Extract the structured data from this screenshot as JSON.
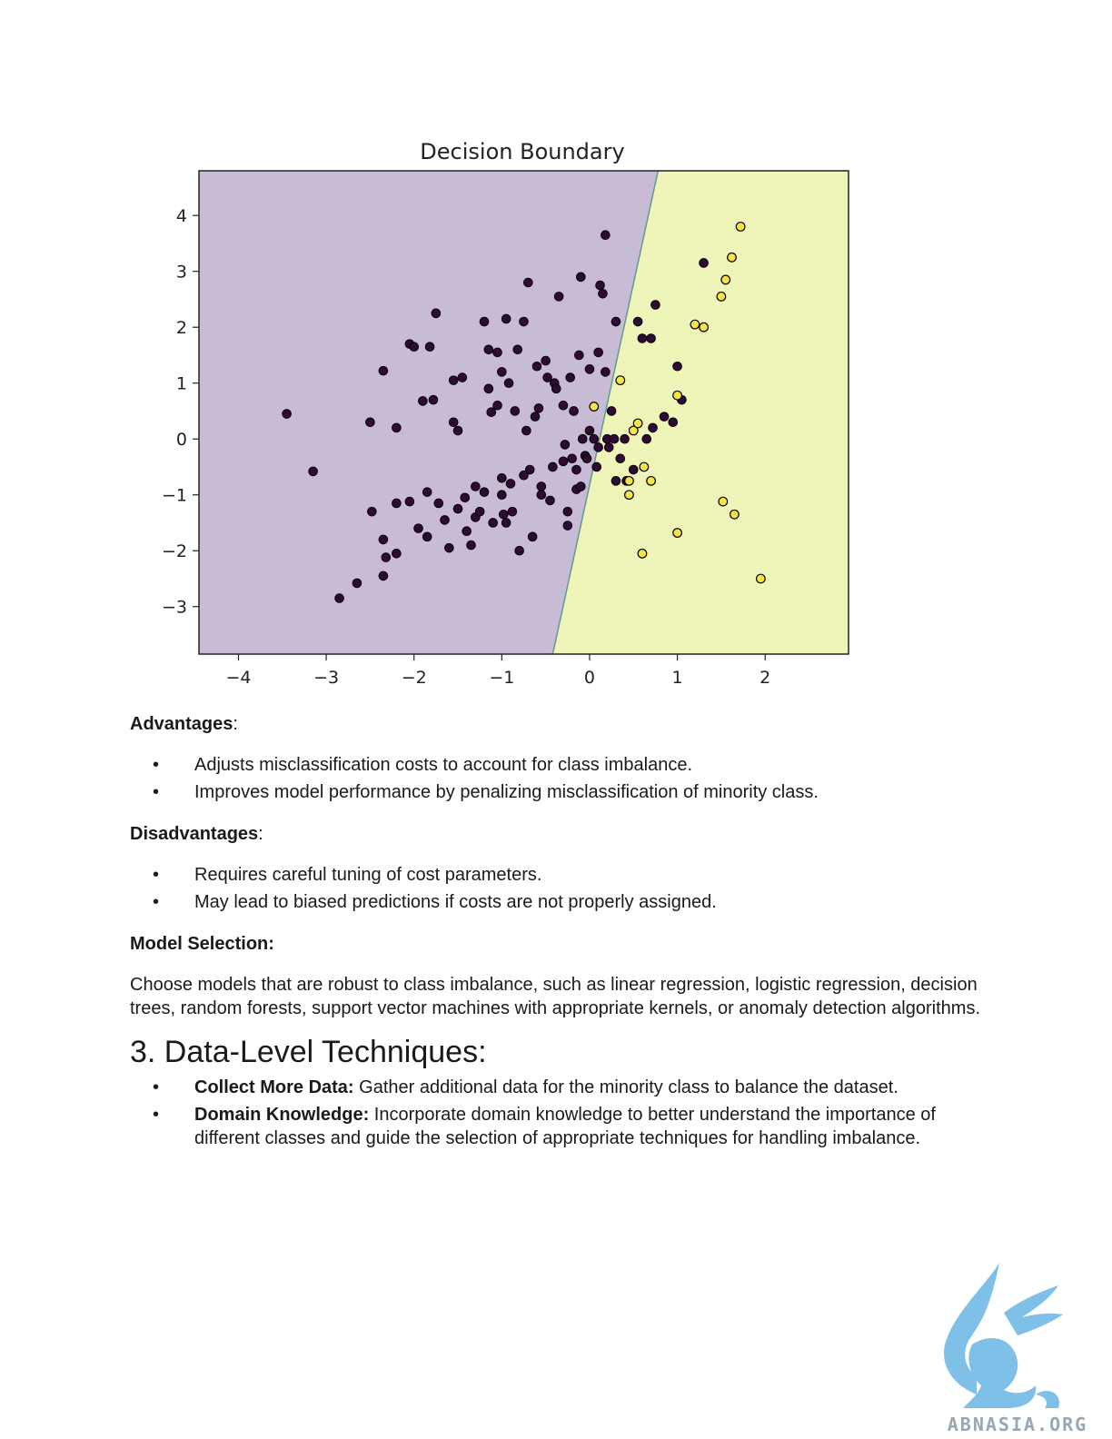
{
  "chart_data": {
    "type": "scatter",
    "title": "Decision Boundary",
    "xlim": [
      -4.45,
      2.95
    ],
    "ylim": [
      -3.85,
      4.8
    ],
    "xticks": [
      -4,
      -3,
      -2,
      -1,
      0,
      1,
      2
    ],
    "yticks": [
      -3,
      -2,
      -1,
      0,
      1,
      2,
      3,
      4
    ],
    "boundary_line": [
      [
        -0.42,
        -3.85
      ],
      [
        0.78,
        4.8
      ]
    ],
    "region_colors": {
      "class_0": "#c8bbd6",
      "class_1": "#eff5b8"
    },
    "point_colors": {
      "class_0": "#2e0a34",
      "class_1": "#f5e443"
    },
    "class_0_points": [
      [
        -3.45,
        0.45
      ],
      [
        -3.15,
        -0.58
      ],
      [
        -2.85,
        -2.85
      ],
      [
        -2.65,
        -2.58
      ],
      [
        -2.5,
        0.3
      ],
      [
        -2.48,
        -1.3
      ],
      [
        -2.35,
        1.22
      ],
      [
        -2.35,
        -1.8
      ],
      [
        -2.32,
        -2.12
      ],
      [
        -2.35,
        -2.45
      ],
      [
        -2.2,
        -2.05
      ],
      [
        -2.2,
        -1.15
      ],
      [
        -2.2,
        0.2
      ],
      [
        -2.05,
        1.7
      ],
      [
        -2.0,
        1.65
      ],
      [
        -2.05,
        -1.12
      ],
      [
        -1.95,
        -1.6
      ],
      [
        -1.9,
        0.68
      ],
      [
        -1.85,
        -0.95
      ],
      [
        -1.85,
        -1.75
      ],
      [
        -1.82,
        1.65
      ],
      [
        -1.78,
        0.7
      ],
      [
        -1.75,
        2.25
      ],
      [
        -1.72,
        -1.15
      ],
      [
        -1.65,
        -1.45
      ],
      [
        -1.6,
        -1.95
      ],
      [
        -1.55,
        1.05
      ],
      [
        -1.55,
        0.3
      ],
      [
        -1.5,
        0.15
      ],
      [
        -1.5,
        -1.25
      ],
      [
        -1.45,
        1.1
      ],
      [
        -1.42,
        -1.05
      ],
      [
        -1.4,
        -1.65
      ],
      [
        -1.35,
        -1.9
      ],
      [
        -1.3,
        -0.85
      ],
      [
        -1.3,
        -1.4
      ],
      [
        -1.25,
        -1.3
      ],
      [
        -1.2,
        2.1
      ],
      [
        -1.2,
        -0.95
      ],
      [
        -1.15,
        0.9
      ],
      [
        -1.15,
        1.6
      ],
      [
        -1.12,
        0.48
      ],
      [
        -1.1,
        -1.5
      ],
      [
        -1.05,
        0.6
      ],
      [
        -1.05,
        1.55
      ],
      [
        -1.0,
        1.2
      ],
      [
        -1.0,
        -0.7
      ],
      [
        -1.0,
        -1.0
      ],
      [
        -0.98,
        -1.35
      ],
      [
        -0.95,
        2.15
      ],
      [
        -0.95,
        -1.5
      ],
      [
        -0.92,
        1.0
      ],
      [
        -0.9,
        -0.8
      ],
      [
        -0.88,
        -1.3
      ],
      [
        -0.85,
        0.5
      ],
      [
        -0.82,
        1.6
      ],
      [
        -0.8,
        -2.0
      ],
      [
        -0.75,
        -0.65
      ],
      [
        -0.75,
        2.1
      ],
      [
        -0.72,
        0.15
      ],
      [
        -0.7,
        2.8
      ],
      [
        -0.68,
        -0.55
      ],
      [
        -0.65,
        -1.75
      ],
      [
        -0.62,
        0.4
      ],
      [
        -0.6,
        1.3
      ],
      [
        -0.58,
        0.55
      ],
      [
        -0.55,
        -0.85
      ],
      [
        -0.55,
        -1.0
      ],
      [
        -0.5,
        1.4
      ],
      [
        -0.48,
        1.1
      ],
      [
        -0.45,
        -1.1
      ],
      [
        -0.42,
        -0.5
      ],
      [
        -0.4,
        1.0
      ],
      [
        -0.38,
        0.9
      ],
      [
        -0.35,
        2.55
      ],
      [
        -0.3,
        0.6
      ],
      [
        -0.3,
        -0.4
      ],
      [
        -0.28,
        -0.1
      ],
      [
        -0.25,
        -1.55
      ],
      [
        -0.25,
        -1.3
      ],
      [
        -0.22,
        1.1
      ],
      [
        -0.2,
        -0.35
      ],
      [
        -0.18,
        0.5
      ],
      [
        -0.15,
        -0.55
      ],
      [
        -0.15,
        -0.9
      ],
      [
        -0.12,
        1.5
      ],
      [
        -0.1,
        2.9
      ],
      [
        -0.08,
        0.0
      ],
      [
        -0.05,
        -0.3
      ],
      [
        -0.03,
        -0.35
      ],
      [
        0.0,
        1.25
      ],
      [
        0.0,
        0.15
      ],
      [
        0.05,
        0.0
      ],
      [
        0.08,
        -0.5
      ],
      [
        0.1,
        1.55
      ],
      [
        0.1,
        -0.15
      ],
      [
        0.12,
        2.75
      ],
      [
        0.15,
        2.6
      ],
      [
        0.18,
        1.2
      ],
      [
        0.2,
        0.0
      ],
      [
        0.22,
        -0.15
      ],
      [
        0.25,
        0.5
      ],
      [
        0.28,
        0.0
      ],
      [
        0.3,
        2.1
      ],
      [
        0.35,
        -0.35
      ],
      [
        0.4,
        0.0
      ],
      [
        0.42,
        -0.75
      ],
      [
        0.5,
        -0.55
      ],
      [
        0.55,
        2.1
      ],
      [
        0.6,
        1.8
      ],
      [
        0.65,
        0.0
      ],
      [
        0.7,
        1.8
      ],
      [
        0.72,
        0.2
      ],
      [
        0.75,
        2.4
      ],
      [
        0.85,
        0.4
      ],
      [
        0.95,
        0.3
      ],
      [
        1.0,
        1.3
      ],
      [
        1.05,
        0.7
      ],
      [
        1.3,
        3.15
      ],
      [
        0.18,
        3.65
      ],
      [
        -0.1,
        -0.85
      ],
      [
        0.3,
        -0.75
      ]
    ],
    "class_1_points": [
      [
        0.05,
        0.58
      ],
      [
        0.35,
        1.05
      ],
      [
        0.5,
        0.15
      ],
      [
        0.45,
        -0.75
      ],
      [
        0.45,
        -1.0
      ],
      [
        0.55,
        0.28
      ],
      [
        0.6,
        -2.05
      ],
      [
        0.62,
        -0.5
      ],
      [
        0.7,
        -0.75
      ],
      [
        1.0,
        0.78
      ],
      [
        1.0,
        -1.68
      ],
      [
        1.2,
        2.05
      ],
      [
        1.3,
        2.0
      ],
      [
        1.5,
        2.55
      ],
      [
        1.52,
        -1.12
      ],
      [
        1.55,
        2.85
      ],
      [
        1.62,
        3.25
      ],
      [
        1.65,
        -1.35
      ],
      [
        1.72,
        3.8
      ],
      [
        1.95,
        -2.5
      ]
    ]
  },
  "advantages": {
    "label": "Advantages",
    "items": [
      "Adjusts misclassification costs to account for class imbalance.",
      "Improves model performance by penalizing misclassification of minority class."
    ]
  },
  "disadvantages": {
    "label": "Disadvantages",
    "items": [
      "Requires careful tuning of cost parameters.",
      "May lead to biased predictions if costs are not properly assigned."
    ]
  },
  "model_selection": {
    "label": "Model Selection:",
    "text": "Choose models that are robust to class imbalance, such as linear regression, logistic regression, decision trees, random forests, support vector machines with appropriate kernels, or anomaly detection algorithms."
  },
  "section3": {
    "heading": "3. Data-Level Techniques:",
    "items": [
      {
        "term": "Collect More Data:",
        "text": " Gather additional data for the minority class to balance the dataset."
      },
      {
        "term": "Domain Knowledge:",
        "text": " Incorporate domain knowledge to better understand the importance of different classes and guide the selection of appropriate techniques for handling imbalance."
      }
    ]
  },
  "logo": {
    "text": "ABNASIA.ORG",
    "color": "#7fc0e8"
  }
}
